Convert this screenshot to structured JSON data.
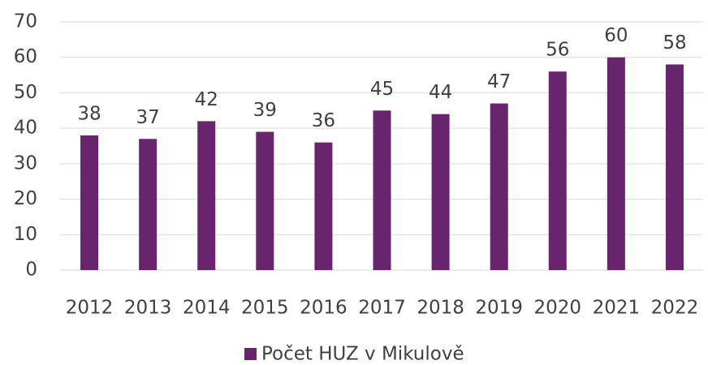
{
  "chart_data": {
    "type": "bar",
    "categories": [
      "2012",
      "2013",
      "2014",
      "2015",
      "2016",
      "2017",
      "2018",
      "2019",
      "2020",
      "2021",
      "2022"
    ],
    "series": [
      {
        "name": "Počet HUZ v Mikulově",
        "color": "#68246d",
        "values": [
          38,
          37,
          42,
          39,
          36,
          45,
          44,
          47,
          56,
          60,
          58
        ]
      }
    ],
    "ylim": [
      0,
      70
    ],
    "yticks": [
      0,
      10,
      20,
      30,
      40,
      50,
      60,
      70
    ],
    "grid": true,
    "legend": "bottom",
    "data_labels": true
  }
}
